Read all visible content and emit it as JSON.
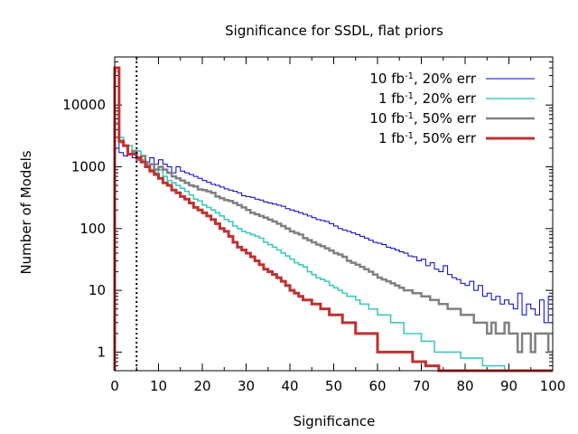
{
  "chart_data": {
    "type": "line",
    "style": "histogram-steps",
    "title": "Significance for SSDL, flat priors",
    "xlabel": "Significance",
    "ylabel": "Number of Models",
    "xlim": [
      0,
      100
    ],
    "ylim": [
      0.5,
      60000
    ],
    "yscale": "log",
    "bin_width": 1,
    "x_ticks": [
      0,
      10,
      20,
      30,
      40,
      50,
      60,
      70,
      80,
      90,
      100
    ],
    "y_ticks": [
      1,
      10,
      100,
      1000,
      10000
    ],
    "y_tick_labels": [
      "1",
      "10",
      "100",
      "1000",
      "10000"
    ],
    "legend_position": "top-right",
    "reference_line": {
      "x": 5,
      "style": "dotted",
      "color": "#000000"
    },
    "series": [
      {
        "name": "10 fb⁻¹, 20% err",
        "legend_main": "10 fb",
        "legend_sup": "-1",
        "legend_rest": ", 20% err",
        "color": "#0000c8",
        "values": [
          6000,
          1700,
          1500,
          1600,
          1400,
          1300,
          1300,
          1200,
          1400,
          1100,
          1300,
          1100,
          1000,
          800,
          1000,
          850,
          800,
          750,
          700,
          650,
          600,
          560,
          520,
          500,
          470,
          440,
          420,
          400,
          380,
          340,
          330,
          320,
          300,
          290,
          270,
          260,
          250,
          240,
          230,
          210,
          200,
          190,
          180,
          170,
          160,
          150,
          140,
          135,
          130,
          120,
          110,
          100,
          95,
          90,
          85,
          80,
          75,
          70,
          65,
          60,
          58,
          55,
          50,
          48,
          45,
          42,
          40,
          36,
          35,
          30,
          32,
          25,
          28,
          22,
          20,
          25,
          18,
          16,
          15,
          13,
          12,
          14,
          10,
          12,
          8,
          9,
          7,
          8,
          6,
          7,
          6,
          5,
          9,
          4,
          6,
          5,
          4,
          7,
          3,
          8
        ]
      },
      {
        "name": "1 fb⁻¹, 20% err",
        "legend_main": "1 fb",
        "legend_sup": "-1",
        "legend_rest": ", 20% err",
        "color": "#40c8c0",
        "values": [
          35000,
          3000,
          2200,
          2200,
          1700,
          1800,
          1300,
          1100,
          900,
          800,
          900,
          700,
          600,
          550,
          500,
          450,
          400,
          350,
          300,
          280,
          240,
          220,
          200,
          180,
          160,
          140,
          130,
          110,
          100,
          90,
          85,
          80,
          75,
          70,
          60,
          55,
          50,
          45,
          40,
          36,
          32,
          28,
          26,
          24,
          20,
          18,
          16,
          15,
          14,
          12,
          11,
          10,
          9,
          8,
          8,
          7,
          6,
          6,
          5,
          5,
          4,
          4,
          4,
          3,
          3,
          3,
          2,
          2,
          2,
          2,
          1.5,
          1.5,
          1.5,
          1,
          1,
          1,
          1,
          1,
          1,
          0.8,
          0.8,
          0.8,
          0.8,
          0.8,
          0.6,
          0.6,
          0.6,
          0.6,
          0.6,
          0.5,
          0.5,
          0.5,
          0.5,
          0.5,
          0.5,
          0.5,
          0.5,
          0.5,
          0.5,
          0.5
        ]
      },
      {
        "name": "10 fb⁻¹, 50% err",
        "legend_main": "10 fb",
        "legend_sup": "-1",
        "legend_rest": ", 50% err",
        "color": "#808080",
        "values": [
          5000,
          2500,
          2200,
          1600,
          1800,
          1300,
          1500,
          1100,
          1100,
          900,
          1000,
          900,
          800,
          700,
          650,
          600,
          550,
          500,
          480,
          430,
          420,
          400,
          380,
          330,
          310,
          290,
          280,
          260,
          240,
          220,
          200,
          180,
          170,
          160,
          150,
          140,
          130,
          120,
          110,
          100,
          90,
          85,
          80,
          70,
          65,
          60,
          55,
          52,
          48,
          44,
          40,
          38,
          35,
          30,
          28,
          26,
          24,
          22,
          20,
          18,
          16,
          15,
          14,
          13,
          12,
          11,
          10,
          10,
          9,
          9,
          8,
          8,
          7,
          7,
          6,
          6,
          5,
          5,
          5,
          4,
          4,
          4,
          3,
          3,
          3,
          2,
          3,
          2,
          2,
          3,
          2,
          2,
          1,
          2,
          2,
          1,
          2,
          2,
          2,
          1
        ]
      },
      {
        "name": "1 fb⁻¹, 50% err",
        "legend_main": "1 fb",
        "legend_sup": "-1",
        "legend_rest": ", 50% err",
        "color": "#c03030",
        "values": [
          40000,
          2600,
          2200,
          1600,
          1600,
          1400,
          1200,
          1000,
          850,
          750,
          650,
          550,
          500,
          420,
          380,
          330,
          300,
          260,
          220,
          200,
          180,
          160,
          140,
          120,
          100,
          90,
          75,
          60,
          50,
          45,
          40,
          35,
          30,
          26,
          22,
          20,
          18,
          16,
          14,
          12,
          10,
          9,
          8,
          7,
          7,
          6,
          6,
          5,
          5,
          4,
          4,
          4,
          3,
          3,
          3,
          2,
          2,
          2,
          2,
          2,
          1,
          1,
          1,
          1,
          1,
          1,
          1,
          1,
          0.7,
          0.7,
          0.7,
          0.6,
          0.6,
          0.6,
          0.5,
          0.5,
          0.5,
          0.5,
          0.5,
          0.5,
          0.5,
          0.5,
          0.5,
          0.5,
          0.5,
          0.5,
          0.5,
          0.5,
          0.5,
          0.5,
          0.5,
          0.5,
          0.5,
          0.5,
          0.5,
          0.5,
          0.5,
          0.5,
          0.5,
          0.5
        ]
      }
    ]
  }
}
